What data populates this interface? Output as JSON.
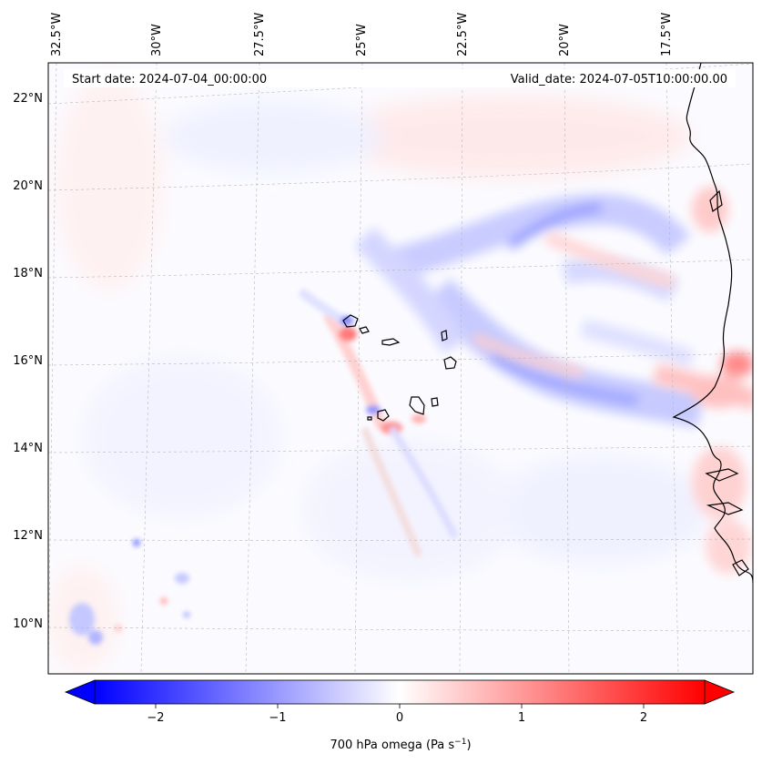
{
  "map": {
    "header_left": "Start date: 2024-07-04_00:00:00",
    "header_right": "Valid_date: 2024-07-05T10:00:00.00",
    "lon_labels": [
      "32.5°W",
      "30°W",
      "27.5°W",
      "25°W",
      "22.5°W",
      "20°W",
      "17.5°W"
    ],
    "lat_labels": [
      "22°N",
      "20°N",
      "18°N",
      "16°N",
      "14°N",
      "12°N",
      "10°N"
    ],
    "field_name": "700 hPa omega",
    "colormap": "bwr",
    "colors": {
      "negative": "#0000ff",
      "zero": "#ffffff",
      "positive": "#ff0000",
      "coast": "#000000",
      "grid": "#b0b0b0"
    }
  },
  "colorbar": {
    "label": "700 hPa omega (Pa s",
    "label_sup": "−1",
    "label_tail": ")",
    "ticks": [
      "−2",
      "−1",
      "0",
      "1",
      "2"
    ],
    "tick_values": [
      -2,
      -1,
      0,
      1,
      2
    ],
    "range": [
      -2.5,
      2.5
    ],
    "extend": "both"
  }
}
